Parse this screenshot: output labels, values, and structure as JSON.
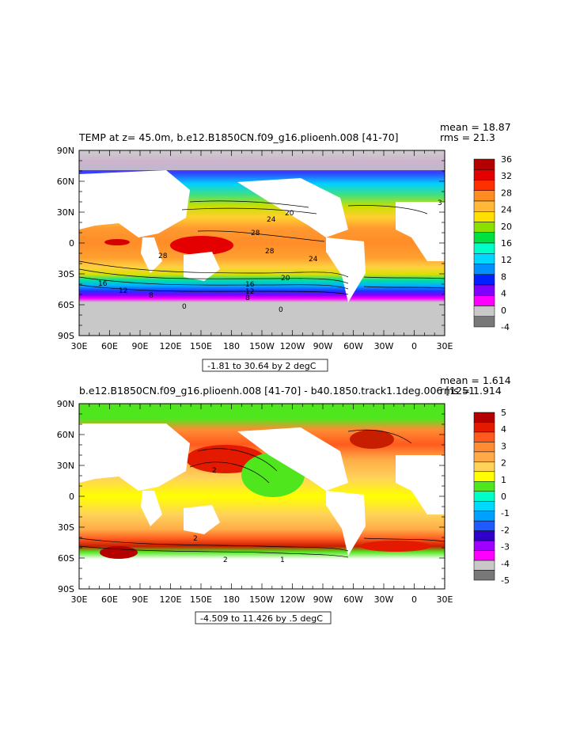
{
  "colors": {
    "land": "#ffffff",
    "ice": "#c8c8c8",
    "frame": "#000000"
  },
  "chart_data": [
    {
      "type": "heatmap",
      "title": "TEMP at z=  45.0m, b.e12.B1850CN.f09_g16.plioenh.008 [41-70]",
      "stats": {
        "mean": "mean = 18.87",
        "rms": "rms = 21.3"
      },
      "x_ticks": [
        "30E",
        "60E",
        "90E",
        "120E",
        "150E",
        "180",
        "150W",
        "120W",
        "90W",
        "60W",
        "30W",
        "0",
        "30E"
      ],
      "y_ticks": [
        "90N",
        "60N",
        "30N",
        "0",
        "30S",
        "60S",
        "90S"
      ],
      "colorbar_labels": [
        "36",
        "32",
        "28",
        "24",
        "20",
        "16",
        "12",
        "8",
        "4",
        "0",
        "-4"
      ],
      "colorbar_colors": [
        "#b40000",
        "#e40000",
        "#ff3000",
        "#ff8c20",
        "#ffb838",
        "#ffe000",
        "#8ce000",
        "#00e040",
        "#00ffc8",
        "#00d8ff",
        "#0090ff",
        "#0020ff",
        "#8000ff",
        "#ff00ff",
        "#c8c8c8",
        "#787878"
      ],
      "contour_labels": [
        "28",
        "24",
        "20",
        "28",
        "28",
        "24",
        "20",
        "16",
        "12",
        "8",
        "0",
        "0",
        "16",
        "12",
        "8",
        "3"
      ],
      "range_label": "-1.81 to 30.64 by 2 degC"
    },
    {
      "type": "heatmap",
      "title": "b.e12.B1850CN.f09_g16.plioenh.008 [41-70] - b40.1850.track1.1deg.006 [1251",
      "stats": {
        "mean": "mean = 1.614",
        "rms": "rms = 1.914"
      },
      "x_ticks": [
        "30E",
        "60E",
        "90E",
        "120E",
        "150E",
        "180",
        "150W",
        "120W",
        "90W",
        "60W",
        "30W",
        "0",
        "30E"
      ],
      "y_ticks": [
        "90N",
        "60N",
        "30N",
        "0",
        "30S",
        "60S",
        "90S"
      ],
      "colorbar_labels": [
        "5",
        "4",
        "3",
        "2",
        "1",
        "0",
        "-1",
        "-2",
        "-3",
        "-4",
        "-5"
      ],
      "colorbar_colors": [
        "#b40000",
        "#e41a00",
        "#ff5a1e",
        "#ff8c32",
        "#ffaa46",
        "#ffd25a",
        "#ffff00",
        "#50e61e",
        "#00ffc8",
        "#00d8ff",
        "#00a0ff",
        "#1e5aff",
        "#3000c8",
        "#a000ff",
        "#ff00ff",
        "#c8c8c8",
        "#787878"
      ],
      "contour_labels": [
        "2",
        "2",
        "2",
        "1"
      ],
      "range_label": "-4.509 to 11.426 by .5 degC"
    }
  ]
}
